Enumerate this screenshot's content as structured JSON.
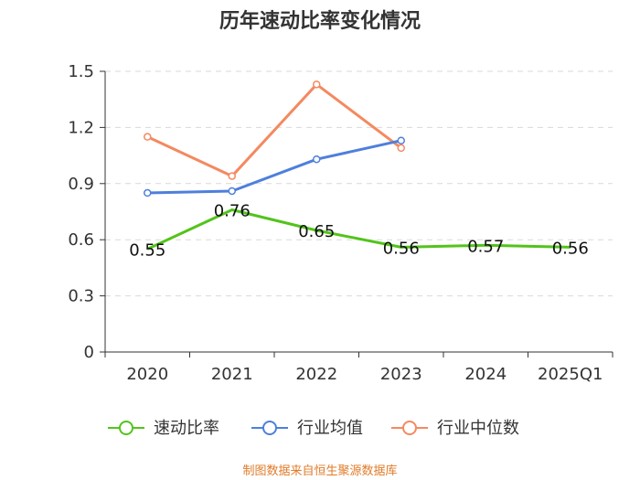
{
  "chart_data": {
    "type": "line",
    "title": "历年速动比率变化情况",
    "categories": [
      "2020",
      "2021",
      "2022",
      "2023",
      "2024",
      "2025Q1"
    ],
    "ylim": [
      0,
      1.5
    ],
    "yticks": [
      "0",
      "0.3",
      "0.6",
      "0.9",
      "1.2",
      "1.5"
    ],
    "ytick_values": [
      0,
      0.3,
      0.6,
      0.9,
      1.2,
      1.5
    ],
    "grid": true,
    "legend_position": "bottom",
    "series": [
      {
        "name": "速动比率",
        "color": "#52c41a",
        "values": [
          0.55,
          0.76,
          0.65,
          0.56,
          0.57,
          0.56
        ],
        "labels": [
          "0.55",
          "0.76",
          "0.65",
          "0.56",
          "0.57",
          "0.56"
        ],
        "show_markers": false
      },
      {
        "name": "行业均值",
        "color": "#4e7fdc",
        "values": [
          0.85,
          0.86,
          1.03,
          1.13,
          null,
          null
        ],
        "show_markers": true
      },
      {
        "name": "行业中位数",
        "color": "#f4895f",
        "values": [
          1.15,
          0.94,
          1.43,
          1.09,
          null,
          null
        ],
        "show_markers": true
      }
    ]
  },
  "source_text": "制图数据来自恒生聚源数据库"
}
